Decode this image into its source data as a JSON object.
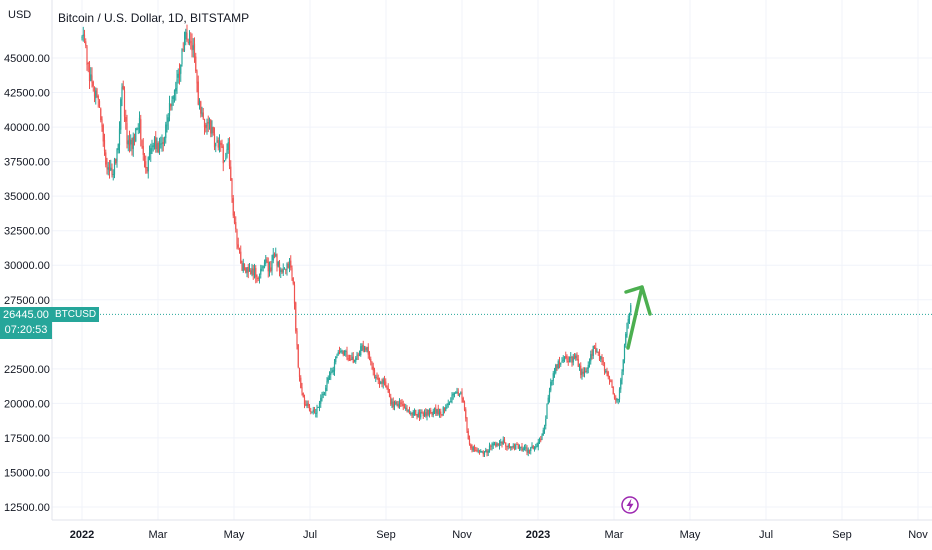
{
  "header": {
    "currency": "USD",
    "title": "Bitcoin / U.S. Dollar, 1D, BITSTAMP"
  },
  "price_marker": {
    "price": "26445.00",
    "countdown": "07:20:53",
    "symbol": "BTCUSD"
  },
  "colors": {
    "up": "#26a69a",
    "down": "#ef5350",
    "arrow": "#4caf50",
    "marker_bg": "#26a69a",
    "event_icon": "#9c27b0"
  },
  "icons": {
    "event": "lightning-icon",
    "arrow": "up-arrow-annotation"
  },
  "chart_data": {
    "type": "candlestick",
    "title": "Bitcoin / U.S. Dollar, 1D, BITSTAMP",
    "ylabel": "USD",
    "ylim": [
      11500,
      48000
    ],
    "y_ticks": [
      "45000.00",
      "42500.00",
      "40000.00",
      "37500.00",
      "35000.00",
      "32500.00",
      "30000.00",
      "27500.00",
      "22500.00",
      "20000.00",
      "17500.00",
      "15000.00",
      "12500.00"
    ],
    "x_ticks": [
      "2022",
      "Mar",
      "May",
      "Jul",
      "Sep",
      "Nov",
      "2023",
      "Mar",
      "May",
      "Jul",
      "Sep",
      "Nov"
    ],
    "x_tick_months": [
      0,
      2,
      4,
      6,
      8,
      10,
      12,
      14,
      16,
      18,
      20,
      22
    ],
    "last_price": 26445,
    "series": [
      {
        "name": "BTCUSD",
        "close_path": [
          [
            0.0,
            46500
          ],
          [
            0.1,
            45500
          ],
          [
            0.25,
            43000
          ],
          [
            0.45,
            41800
          ],
          [
            0.6,
            38000
          ],
          [
            0.7,
            36500
          ],
          [
            0.8,
            36800
          ],
          [
            0.95,
            38500
          ],
          [
            1.05,
            43500
          ],
          [
            1.2,
            38500
          ],
          [
            1.35,
            39000
          ],
          [
            1.5,
            40500
          ],
          [
            1.6,
            38500
          ],
          [
            1.7,
            37000
          ],
          [
            1.85,
            39000
          ],
          [
            1.95,
            38500
          ],
          [
            2.1,
            38500
          ],
          [
            2.25,
            41000
          ],
          [
            2.4,
            42000
          ],
          [
            2.55,
            44000
          ],
          [
            2.7,
            46500
          ],
          [
            2.85,
            46000
          ],
          [
            2.95,
            45500
          ],
          [
            3.05,
            42000
          ],
          [
            3.2,
            40000
          ],
          [
            3.35,
            40500
          ],
          [
            3.5,
            38500
          ],
          [
            3.6,
            39000
          ],
          [
            3.75,
            37500
          ],
          [
            3.85,
            38500
          ],
          [
            4.0,
            33000
          ],
          [
            4.2,
            30000
          ],
          [
            4.35,
            29500
          ],
          [
            4.5,
            29500
          ],
          [
            4.65,
            29000
          ],
          [
            4.8,
            30500
          ],
          [
            4.95,
            29500
          ],
          [
            5.05,
            31200
          ],
          [
            5.2,
            29500
          ],
          [
            5.35,
            29500
          ],
          [
            5.45,
            30200
          ],
          [
            5.55,
            29000
          ],
          [
            5.7,
            22000
          ],
          [
            5.85,
            20000
          ],
          [
            6.0,
            19500
          ],
          [
            6.15,
            19200
          ],
          [
            6.3,
            20500
          ],
          [
            6.45,
            21500
          ],
          [
            6.6,
            22500
          ],
          [
            6.75,
            23800
          ],
          [
            6.9,
            23800
          ],
          [
            7.05,
            23000
          ],
          [
            7.2,
            23200
          ],
          [
            7.35,
            24000
          ],
          [
            7.5,
            24100
          ],
          [
            7.65,
            22500
          ],
          [
            7.8,
            21500
          ],
          [
            7.95,
            21500
          ],
          [
            8.1,
            20200
          ],
          [
            8.25,
            19800
          ],
          [
            8.4,
            20000
          ],
          [
            8.55,
            19500
          ],
          [
            8.7,
            19300
          ],
          [
            8.85,
            19200
          ],
          [
            9.0,
            19300
          ],
          [
            9.15,
            19400
          ],
          [
            9.3,
            19500
          ],
          [
            9.45,
            19200
          ],
          [
            9.6,
            20000
          ],
          [
            9.75,
            20500
          ],
          [
            9.85,
            21000
          ],
          [
            10.0,
            20500
          ],
          [
            10.2,
            17000
          ],
          [
            10.35,
            16500
          ],
          [
            10.5,
            16500
          ],
          [
            10.65,
            16500
          ],
          [
            10.8,
            17000
          ],
          [
            10.95,
            17000
          ],
          [
            11.1,
            17200
          ],
          [
            11.25,
            16900
          ],
          [
            11.45,
            16800
          ],
          [
            11.6,
            16700
          ],
          [
            11.75,
            16600
          ],
          [
            11.9,
            16800
          ],
          [
            12.0,
            17000
          ],
          [
            12.15,
            18000
          ],
          [
            12.3,
            21000
          ],
          [
            12.45,
            22500
          ],
          [
            12.6,
            23000
          ],
          [
            12.75,
            23300
          ],
          [
            12.9,
            23100
          ],
          [
            13.0,
            23500
          ],
          [
            13.15,
            22000
          ],
          [
            13.3,
            22300
          ],
          [
            13.45,
            24000
          ],
          [
            13.6,
            23500
          ],
          [
            13.75,
            22500
          ],
          [
            13.85,
            22000
          ],
          [
            14.0,
            20500
          ],
          [
            14.1,
            20000
          ],
          [
            14.2,
            22000
          ],
          [
            14.35,
            26200
          ],
          [
            14.45,
            27000
          ]
        ]
      }
    ],
    "annotations": [
      "green up arrow after last candle"
    ]
  }
}
